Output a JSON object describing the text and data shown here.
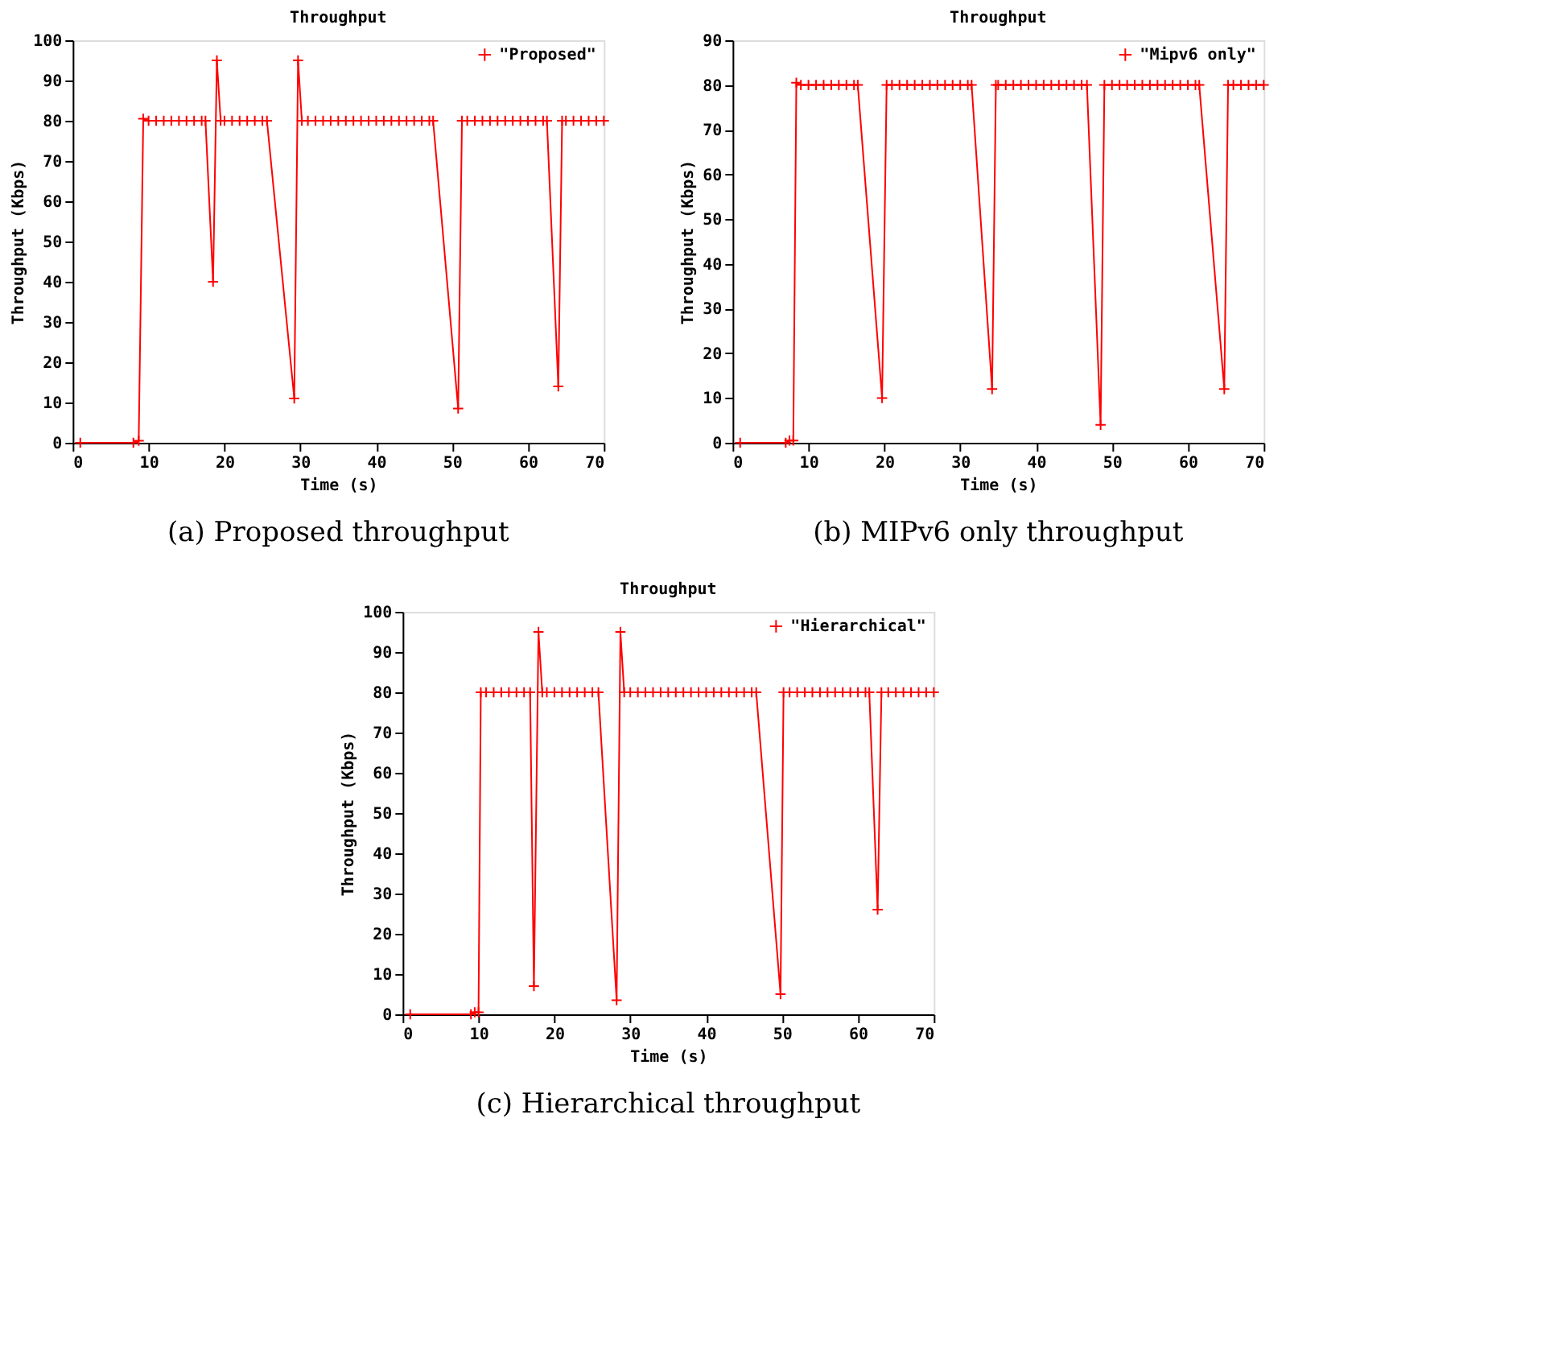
{
  "chart_data": [
    {
      "type": "line",
      "title": "Throughput",
      "xlabel": "Time (s)",
      "ylabel": "Throughput (Kbps)",
      "xlim": [
        0,
        70
      ],
      "xticks": [
        0,
        10,
        20,
        30,
        40,
        50,
        60,
        70
      ],
      "ylim": [
        0,
        100
      ],
      "yticks": [
        0,
        10,
        20,
        30,
        40,
        50,
        60,
        70,
        80,
        90,
        100
      ],
      "legend": "top right",
      "marker": "cross",
      "line_style": "solid",
      "annotations": [
        "(a) Proposed throughput"
      ],
      "series": [
        {
          "name": "\"Proposed\"",
          "color": "#ff0000",
          "x": [
            1,
            8,
            8.7,
            9.3,
            10,
            11,
            12,
            13,
            14,
            15,
            16,
            17,
            17.5,
            18.5,
            19,
            19.5,
            20,
            21,
            22,
            23,
            24,
            25,
            25.6,
            29.2,
            29.7,
            30.2,
            31,
            32,
            33,
            34,
            35,
            36,
            37,
            38,
            39,
            40,
            41,
            42,
            43,
            44,
            45,
            46,
            47,
            47.5,
            50.8,
            51.3,
            52,
            53,
            54,
            55,
            56,
            57,
            58,
            59,
            60,
            61,
            62,
            62.5,
            64,
            64.5,
            65,
            66,
            67,
            68,
            69,
            70
          ],
          "values": [
            0,
            0,
            0.5,
            80.5,
            80,
            80,
            80,
            80,
            80,
            80,
            80,
            80,
            80,
            40,
            95,
            80,
            80,
            80,
            80,
            80,
            80,
            80,
            80,
            11,
            95,
            80,
            80,
            80,
            80,
            80,
            80,
            80,
            80,
            80,
            80,
            80,
            80,
            80,
            80,
            80,
            80,
            80,
            80,
            80,
            8.5,
            80,
            80,
            80,
            80,
            80,
            80,
            80,
            80,
            80,
            80,
            80,
            80,
            80,
            14,
            80,
            80,
            80,
            80,
            80,
            80,
            80
          ]
        }
      ]
    },
    {
      "type": "line",
      "title": "Throughput",
      "xlabel": "Time (s)",
      "ylabel": "Throughput (Kbps)",
      "xlim": [
        0,
        70
      ],
      "xticks": [
        0,
        10,
        20,
        30,
        40,
        50,
        60,
        70
      ],
      "ylim": [
        0,
        90
      ],
      "yticks": [
        0,
        10,
        20,
        30,
        40,
        50,
        60,
        70,
        80,
        90
      ],
      "legend": "top right",
      "marker": "cross",
      "line_style": "solid",
      "annotations": [
        "(b) MIPv6 only throughput"
      ],
      "series": [
        {
          "name": "\"Mipv6 only\"",
          "color": "#ff0000",
          "x": [
            1,
            7,
            7.5,
            8,
            8.4,
            9,
            10,
            11,
            12,
            13,
            14,
            15,
            16,
            16.5,
            19.7,
            20.3,
            21,
            22,
            23,
            24,
            25,
            26,
            27,
            28,
            29,
            30,
            31,
            31.5,
            34.2,
            34.7,
            35,
            36,
            37,
            38,
            39,
            40,
            41,
            42,
            43,
            44,
            45,
            46,
            46.7,
            48.5,
            49,
            50,
            51,
            52,
            53,
            54,
            55,
            56,
            57,
            58,
            59,
            60,
            61,
            61.5,
            64.8,
            65.3,
            66,
            67,
            68,
            69,
            70
          ],
          "values": [
            0,
            0,
            0.5,
            0.5,
            80.5,
            80,
            80,
            80,
            80,
            80,
            80,
            80,
            80,
            80,
            10,
            80,
            80,
            80,
            80,
            80,
            80,
            80,
            80,
            80,
            80,
            80,
            80,
            80,
            12,
            80,
            80,
            80,
            80,
            80,
            80,
            80,
            80,
            80,
            80,
            80,
            80,
            80,
            80,
            4,
            80,
            80,
            80,
            80,
            80,
            80,
            80,
            80,
            80,
            80,
            80,
            80,
            80,
            80,
            12,
            80,
            80,
            80,
            80,
            80,
            80
          ]
        }
      ]
    },
    {
      "type": "line",
      "title": "Throughput",
      "xlabel": "Time (s)",
      "ylabel": "Throughput (Kbps)",
      "xlim": [
        0,
        70
      ],
      "xticks": [
        0,
        10,
        20,
        30,
        40,
        50,
        60,
        70
      ],
      "ylim": [
        0,
        100
      ],
      "yticks": [
        0,
        10,
        20,
        30,
        40,
        50,
        60,
        70,
        80,
        90,
        100
      ],
      "legend": "top right",
      "marker": "cross",
      "line_style": "solid",
      "annotations": [
        "(c) Hierarchical throughput"
      ],
      "series": [
        {
          "name": "\"Hierarchical\"",
          "color": "#ff0000",
          "x": [
            1,
            9,
            9.5,
            10,
            10.3,
            11,
            12,
            13,
            14,
            15,
            16,
            16.8,
            17.3,
            17.9,
            18.4,
            19,
            20,
            21,
            22,
            23,
            24,
            25,
            25.8,
            28.2,
            28.7,
            29.2,
            30,
            31,
            32,
            33,
            34,
            35,
            36,
            37,
            38,
            39,
            40,
            41,
            42,
            43,
            44,
            45,
            46,
            46.6,
            49.8,
            50.2,
            51,
            52,
            53,
            54,
            55,
            56,
            57,
            58,
            59,
            60,
            61,
            61.5,
            62.6,
            63.1,
            64,
            65,
            66,
            67,
            68,
            69,
            70
          ],
          "values": [
            0,
            0,
            0.5,
            0.5,
            80,
            80,
            80,
            80,
            80,
            80,
            80,
            80,
            7,
            95,
            80,
            80,
            80,
            80,
            80,
            80,
            80,
            80,
            80,
            3.5,
            95,
            80,
            80,
            80,
            80,
            80,
            80,
            80,
            80,
            80,
            80,
            80,
            80,
            80,
            80,
            80,
            80,
            80,
            80,
            80,
            5,
            80,
            80,
            80,
            80,
            80,
            80,
            80,
            80,
            80,
            80,
            80,
            80,
            80,
            26,
            80,
            80,
            80,
            80,
            80,
            80,
            80,
            80
          ]
        }
      ]
    }
  ]
}
